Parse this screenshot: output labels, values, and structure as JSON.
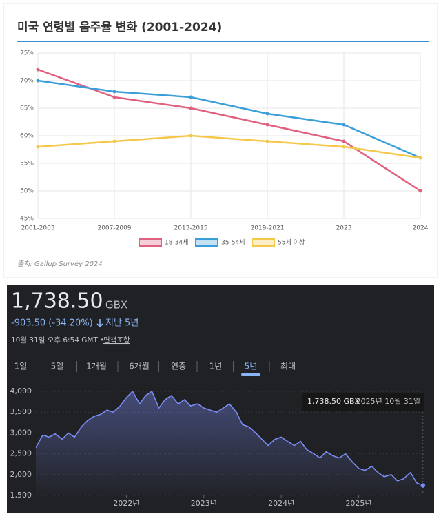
{
  "chart_data": [
    {
      "type": "line",
      "title": "미국 연령별 음주율 변화 (2001-2024)",
      "categories": [
        "2001-2003",
        "2007-2009",
        "2013-2015",
        "2019-2021",
        "2023",
        "2024"
      ],
      "series": [
        {
          "name": "18-34세",
          "color": "#e0607e",
          "values": [
            72,
            67,
            65,
            62,
            59,
            50
          ]
        },
        {
          "name": "35-54세",
          "color": "#3a9fd8",
          "values": [
            70,
            68,
            67,
            64,
            62,
            56
          ]
        },
        {
          "name": "55세 이상",
          "color": "#f5c84a",
          "values": [
            58,
            59,
            60,
            59,
            58,
            56
          ]
        }
      ],
      "ylim": [
        45,
        75
      ],
      "yticks": [
        {
          "value": 45,
          "label": "45%"
        },
        {
          "value": 50,
          "label": "50%"
        },
        {
          "value": 55,
          "label": "55%"
        },
        {
          "value": 60,
          "label": "60%"
        },
        {
          "value": 65,
          "label": "65%"
        },
        {
          "value": 70,
          "label": "70%"
        },
        {
          "value": 75,
          "label": "75%"
        }
      ],
      "grid": true,
      "legend": "bottom",
      "source": "출처: Gallup Survey 2024"
    },
    {
      "type": "area",
      "price": "1,738.50",
      "currency": "GBX",
      "change": "-903.50 (-34.20%)",
      "period": "지난 5년",
      "timestamp": "10월 31일 오후 6:54 GMT •",
      "disclaimer": "면책조항",
      "tabs": [
        "1일",
        "5일",
        "1개월",
        "6개월",
        "연중",
        "1년",
        "5년",
        "최대"
      ],
      "selected_tab": 6,
      "tooltip_value": "1,738.50 GBX",
      "tooltip_date": "2025년 10월 31일",
      "color": "#7b8cf5",
      "x": [
        2020.83,
        2020.92,
        2021.0,
        2021.08,
        2021.17,
        2021.25,
        2021.33,
        2021.42,
        2021.5,
        2021.58,
        2021.67,
        2021.75,
        2021.83,
        2021.92,
        2022.0,
        2022.08,
        2022.17,
        2022.25,
        2022.33,
        2022.42,
        2022.5,
        2022.58,
        2022.67,
        2022.75,
        2022.83,
        2022.92,
        2023.0,
        2023.08,
        2023.17,
        2023.25,
        2023.33,
        2023.42,
        2023.5,
        2023.58,
        2023.67,
        2023.75,
        2023.83,
        2023.92,
        2024.0,
        2024.08,
        2024.17,
        2024.25,
        2024.33,
        2024.42,
        2024.5,
        2024.58,
        2024.67,
        2024.75,
        2024.83,
        2024.92,
        2025.0,
        2025.08,
        2025.17,
        2025.25,
        2025.33,
        2025.42,
        2025.5,
        2025.58,
        2025.67,
        2025.75,
        2025.83
      ],
      "values": [
        2650,
        2950,
        2900,
        2980,
        2850,
        3000,
        2900,
        3150,
        3300,
        3400,
        3450,
        3550,
        3500,
        3650,
        3850,
        4000,
        3700,
        3900,
        4000,
        3600,
        3800,
        3900,
        3700,
        3800,
        3650,
        3700,
        3600,
        3550,
        3500,
        3600,
        3700,
        3500,
        3200,
        3150,
        3000,
        2850,
        2700,
        2850,
        2900,
        2800,
        2700,
        2800,
        2600,
        2500,
        2400,
        2550,
        2450,
        2400,
        2500,
        2300,
        2150,
        2100,
        2200,
        2050,
        1950,
        2000,
        1850,
        1900,
        2050,
        1800,
        1738.5
      ],
      "xlim": [
        2020.83,
        2025.85
      ],
      "xticks": [
        {
          "value": 2022,
          "label": "2022년"
        },
        {
          "value": 2023,
          "label": "2023년"
        },
        {
          "value": 2024,
          "label": "2024년"
        },
        {
          "value": 2025,
          "label": "2025년"
        }
      ],
      "ylim": [
        1500,
        4000
      ],
      "yticks": [
        {
          "value": 1500,
          "label": "1,500"
        },
        {
          "value": 2000,
          "label": "2,000"
        },
        {
          "value": 2500,
          "label": "2,500"
        },
        {
          "value": 3000,
          "label": "3,000"
        },
        {
          "value": 3500,
          "label": "3,500"
        },
        {
          "value": 4000,
          "label": "4,000"
        }
      ],
      "grid": true
    }
  ]
}
